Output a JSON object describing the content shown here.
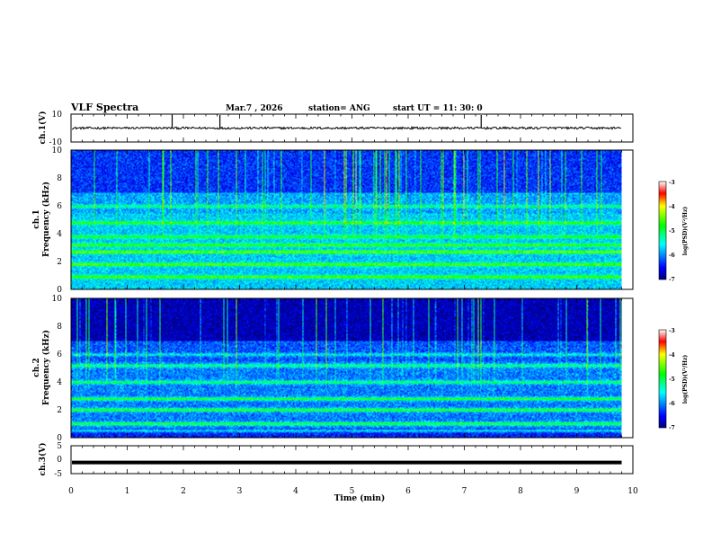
{
  "header": {
    "title": "VLF Spectra",
    "date": "Mar.7 , 2026",
    "station": "station= ANG",
    "start": "start UT = 11: 30: 0"
  },
  "chart_data": [
    {
      "type": "line",
      "panel": "ch1-waveform",
      "ylabel": "ch.1(V)",
      "ylim": [
        -10,
        10
      ],
      "yticks": [
        "10",
        "-10"
      ],
      "baseline": 0,
      "spikes_min": [
        1.8,
        2.65,
        7.3
      ]
    },
    {
      "type": "heatmap",
      "panel": "ch1-spectrogram",
      "ylabel": "ch.1\nFrequency (kHz)",
      "ylim": [
        0,
        10
      ],
      "yticks": [
        "0",
        "2",
        "4",
        "6",
        "8",
        "10"
      ],
      "colorbar": {
        "label": "log(PSD)(V²/Hz)",
        "range": [
          -7,
          -3
        ],
        "ticks": [
          "-3",
          "-4",
          "-5",
          "-6",
          "-7"
        ]
      }
    },
    {
      "type": "heatmap",
      "panel": "ch2-spectrogram",
      "ylabel": "ch.2\nFrequency (kHz)",
      "ylim": [
        0,
        10
      ],
      "yticks": [
        "0",
        "2",
        "4",
        "6",
        "8",
        "10"
      ],
      "colorbar": {
        "label": "log(PSD)(V²/Hz)",
        "range": [
          -7,
          -3
        ],
        "ticks": [
          "-3",
          "-4",
          "-5",
          "-6",
          "-7"
        ]
      }
    },
    {
      "type": "line",
      "panel": "ch3-waveform",
      "ylabel": "ch.3(V)",
      "ylim": [
        -5,
        5
      ],
      "yticks": [
        "5",
        "0",
        "-5"
      ],
      "baseline": -1
    }
  ],
  "xaxis": {
    "label": "Time (min)",
    "range": [
      0,
      10
    ],
    "ticks": [
      "0",
      "1",
      "2",
      "3",
      "4",
      "5",
      "6",
      "7",
      "8",
      "9",
      "10"
    ],
    "data_end": 9.8
  },
  "colors": {
    "line": "#000000",
    "background": "#ffffff"
  }
}
